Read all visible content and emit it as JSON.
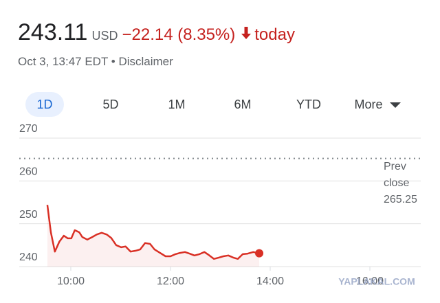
{
  "header": {
    "price": "243.11",
    "currency": "USD",
    "change": "−22.14 (8.35%)",
    "period": "today",
    "timestamp": "Oct 3, 13:47 EDT",
    "disclaimer": "Disclaimer"
  },
  "tabs": [
    "1D",
    "5D",
    "1M",
    "6M",
    "YTD",
    "More"
  ],
  "chart_data": {
    "type": "line",
    "x": [
      9.53,
      9.6,
      9.68,
      9.77,
      9.86,
      9.94,
      10.01,
      10.08,
      10.17,
      10.23,
      10.33,
      10.43,
      10.52,
      10.62,
      10.72,
      10.81,
      10.91,
      11.01,
      11.1,
      11.2,
      11.3,
      11.39,
      11.49,
      11.59,
      11.68,
      11.79,
      11.9,
      12,
      12.1,
      12.19,
      12.29,
      12.39,
      12.48,
      12.58,
      12.68,
      12.77,
      12.87,
      12.97,
      13.06,
      13.16,
      13.26,
      13.35,
      13.45,
      13.54,
      13.66,
      13.78
    ],
    "values": [
      254.4,
      248,
      243.5,
      245.8,
      247.2,
      246.6,
      246.6,
      248.5,
      248,
      246.9,
      246.3,
      246.9,
      247.5,
      247.9,
      247.5,
      246.7,
      245,
      244.5,
      244.7,
      243.5,
      243.7,
      244,
      245.5,
      245.3,
      244,
      243.2,
      242.4,
      242.4,
      242.9,
      243.2,
      243.4,
      243,
      242.6,
      242.9,
      243.4,
      242.7,
      241.8,
      242.1,
      242.4,
      242.6,
      242.1,
      241.8,
      242.9,
      243,
      243.4,
      243.11
    ],
    "color": "#d93025",
    "xlim": [
      9,
      17
    ],
    "ylim": [
      240,
      270
    ],
    "xticks": [
      {
        "value": 10,
        "label": "10:00"
      },
      {
        "value": 12,
        "label": "12:00"
      },
      {
        "value": 14,
        "label": "14:00"
      },
      {
        "value": 16,
        "label": "16:00"
      }
    ],
    "yticks": [
      240,
      250,
      260,
      270
    ],
    "grid": true,
    "prev_close": {
      "label_lines": [
        "Prev",
        "close"
      ],
      "value": 265.25
    },
    "watermark": "YAPLAKAL.COM"
  }
}
